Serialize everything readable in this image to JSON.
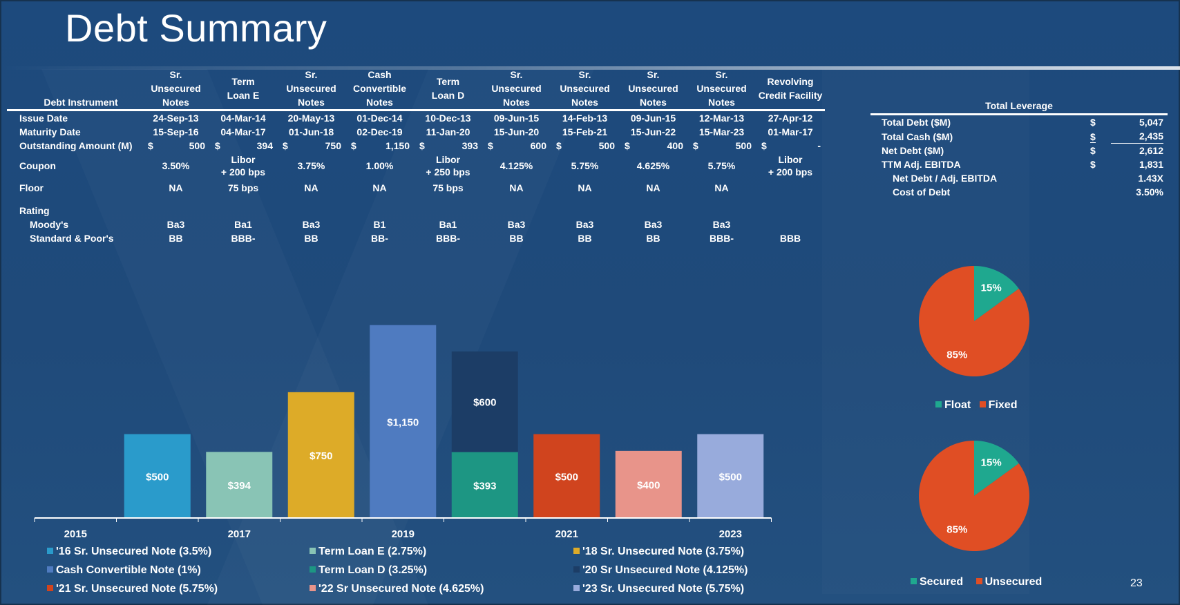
{
  "title": "Debt Summary",
  "page_number": "23",
  "debt_table": {
    "corner_label": "Debt Instrument",
    "columns": [
      {
        "header": [
          "Sr.",
          "Unsecured",
          "Notes"
        ]
      },
      {
        "header": [
          "Term",
          "Loan E"
        ]
      },
      {
        "header": [
          "Sr.",
          "Unsecured",
          "Notes"
        ]
      },
      {
        "header": [
          "Cash",
          "Convertible",
          "Notes"
        ]
      },
      {
        "header": [
          "Term",
          "Loan D"
        ]
      },
      {
        "header": [
          "Sr.",
          "Unsecured",
          "Notes"
        ]
      },
      {
        "header": [
          "Sr.",
          "Unsecured",
          "Notes"
        ]
      },
      {
        "header": [
          "Sr.",
          "Unsecured",
          "Notes"
        ]
      },
      {
        "header": [
          "Sr.",
          "Unsecured",
          "Notes"
        ]
      },
      {
        "header": [
          "Revolving",
          "Credit Facility"
        ]
      }
    ],
    "row_labels": {
      "issue_date": "Issue Date",
      "maturity_date": "Maturity Date",
      "outstanding": "Outstanding Amount (M)",
      "coupon": "Coupon",
      "floor": "Floor",
      "rating": "Rating",
      "moodys": "Moody's",
      "sp": "Standard & Poor's"
    },
    "currency_symbol": "$",
    "issue_date": [
      "24-Sep-13",
      "04-Mar-14",
      "20-May-13",
      "01-Dec-14",
      "10-Dec-13",
      "09-Jun-15",
      "14-Feb-13",
      "09-Jun-15",
      "12-Mar-13",
      "27-Apr-12"
    ],
    "maturity_date": [
      "15-Sep-16",
      "04-Mar-17",
      "01-Jun-18",
      "02-Dec-19",
      "11-Jan-20",
      "15-Jun-20",
      "15-Feb-21",
      "15-Jun-22",
      "15-Mar-23",
      "01-Mar-17"
    ],
    "outstanding": [
      "500",
      "394",
      "750",
      "1,150",
      "393",
      "600",
      "500",
      "400",
      "500",
      "-"
    ],
    "coupon": [
      [
        "3.50%"
      ],
      [
        "Libor",
        "+ 200 bps"
      ],
      [
        "3.75%"
      ],
      [
        "1.00%"
      ],
      [
        "Libor",
        "+ 250 bps"
      ],
      [
        "4.125%"
      ],
      [
        "5.75%"
      ],
      [
        "4.625%"
      ],
      [
        "5.75%"
      ],
      [
        "Libor",
        "+ 200 bps"
      ]
    ],
    "floor": [
      "NA",
      "75 bps",
      "NA",
      "NA",
      "75 bps",
      "NA",
      "NA",
      "NA",
      "NA",
      ""
    ],
    "moodys": [
      "Ba3",
      "Ba1",
      "Ba3",
      "B1",
      "Ba1",
      "Ba3",
      "Ba3",
      "Ba3",
      "Ba3",
      ""
    ],
    "sp": [
      "BB",
      "BBB-",
      "BB",
      "BB-",
      "BBB-",
      "BB",
      "BB",
      "BB",
      "BBB-",
      "BBB"
    ]
  },
  "leverage": {
    "header": "Total Leverage",
    "rows": [
      {
        "label": "Total Debt ($M)",
        "currency": "$",
        "value": "5,047"
      },
      {
        "label": "Total Cash ($M)",
        "currency": "$",
        "value": "2,435"
      },
      {
        "label": "Net Debt ($M)",
        "currency": "$",
        "value": "2,612"
      },
      {
        "label": "TTM Adj. EBITDA",
        "currency": "$",
        "value": "1,831"
      },
      {
        "label": "Net Debt / Adj. EBITDA",
        "currency": "",
        "value": "1.43X"
      },
      {
        "label": "Cost of Debt",
        "currency": "",
        "value": "3.50%"
      }
    ]
  },
  "colors": {
    "sr16": "#2a9bcb",
    "tle": "#89c4b5",
    "sr18": "#ddab28",
    "conv": "#4f7bc0",
    "tld": "#1d9683",
    "sr20": "#1c3d66",
    "sr21": "#d0441e",
    "sr22": "#e8948a",
    "sr23": "#98abdc",
    "float": "#1fa88f",
    "fixed": "#e04e24"
  },
  "chart_data": [
    {
      "type": "bar",
      "stacked": true,
      "categories": [
        "2015",
        "2016",
        "2017",
        "2018",
        "2019",
        "2020",
        "2021",
        "2022",
        "2023"
      ],
      "tick_labels": [
        "2015",
        "",
        "2017",
        "",
        "2019",
        "",
        "2021",
        "",
        "2023"
      ],
      "ylim": [
        0,
        1400
      ],
      "series": [
        {
          "name": "'16 Sr. Unsecured Note (3.5%)",
          "color_key": "sr16",
          "values": [
            0,
            500,
            0,
            0,
            0,
            0,
            0,
            0,
            0
          ],
          "labels": [
            "",
            "$500",
            "",
            "",
            "",
            "",
            "",
            "",
            ""
          ]
        },
        {
          "name": "Term Loan E (2.75%)",
          "color_key": "tle",
          "values": [
            0,
            0,
            394,
            0,
            0,
            0,
            0,
            0,
            0
          ],
          "labels": [
            "",
            "",
            "$394",
            "",
            "",
            "",
            "",
            "",
            ""
          ]
        },
        {
          "name": "'18 Sr. Unsecured Note (3.75%)",
          "color_key": "sr18",
          "values": [
            0,
            0,
            0,
            750,
            0,
            0,
            0,
            0,
            0
          ],
          "labels": [
            "",
            "",
            "",
            "$750",
            "",
            "",
            "",
            "",
            ""
          ]
        },
        {
          "name": "Cash Convertible Note (1%)",
          "color_key": "conv",
          "values": [
            0,
            0,
            0,
            0,
            1150,
            0,
            0,
            0,
            0
          ],
          "labels": [
            "",
            "",
            "",
            "",
            "$1,150",
            "",
            "",
            "",
            ""
          ]
        },
        {
          "name": "Term Loan D (3.25%)",
          "color_key": "tld",
          "values": [
            0,
            0,
            0,
            0,
            0,
            393,
            0,
            0,
            0
          ],
          "labels": [
            "",
            "",
            "",
            "",
            "",
            "$393",
            "",
            "",
            ""
          ]
        },
        {
          "name": "'20 Sr Unsecured Note (4.125%)",
          "color_key": "sr20",
          "values": [
            0,
            0,
            0,
            0,
            0,
            600,
            0,
            0,
            0
          ],
          "labels": [
            "",
            "",
            "",
            "",
            "",
            "$600",
            "",
            "",
            ""
          ]
        },
        {
          "name": "'21 Sr. Unsecured Note (5.75%)",
          "color_key": "sr21",
          "values": [
            0,
            0,
            0,
            0,
            0,
            0,
            500,
            0,
            0
          ],
          "labels": [
            "",
            "",
            "",
            "",
            "",
            "",
            "$500",
            "",
            ""
          ]
        },
        {
          "name": "'22 Sr Unsecured Note (4.625%)",
          "color_key": "sr22",
          "values": [
            0,
            0,
            0,
            0,
            0,
            0,
            0,
            400,
            0
          ],
          "labels": [
            "",
            "",
            "",
            "",
            "",
            "",
            "",
            "$400",
            ""
          ]
        },
        {
          "name": "'23 Sr. Unsecured Note (5.75%)",
          "color_key": "sr23",
          "values": [
            0,
            0,
            0,
            0,
            0,
            0,
            0,
            0,
            500
          ],
          "labels": [
            "",
            "",
            "",
            "",
            "",
            "",
            "",
            "",
            "$500"
          ]
        }
      ],
      "legend_placement": "bottom"
    },
    {
      "type": "pie",
      "slices": [
        {
          "name": "Float",
          "value": 15,
          "label": "15%",
          "color_key": "float"
        },
        {
          "name": "Fixed",
          "value": 85,
          "label": "85%",
          "color_key": "fixed"
        }
      ],
      "legend_placement": "bottom"
    },
    {
      "type": "pie",
      "slices": [
        {
          "name": "Secured",
          "value": 15,
          "label": "15%",
          "color_key": "float"
        },
        {
          "name": "Unsecured",
          "value": 85,
          "label": "85%",
          "color_key": "fixed"
        }
      ],
      "legend_placement": "bottom"
    }
  ]
}
